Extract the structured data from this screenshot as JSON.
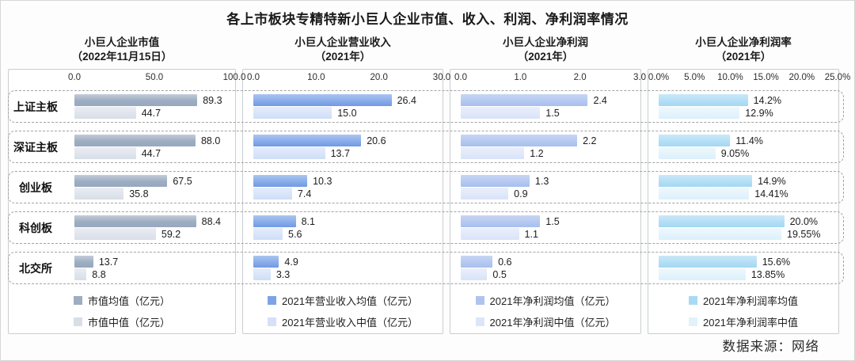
{
  "title": "各上市板块专精特新小巨人企业市值、收入、利润、净利润率情况",
  "footer": {
    "source": "数据来源：网络"
  },
  "categories": [
    "上证主板",
    "深证主板",
    "创业板",
    "科创板",
    "北交所"
  ],
  "chart_data": [
    {
      "type": "bar",
      "orientation": "horizontal",
      "title": "小巨人企业市值",
      "subtitle": "（2022年11月15日）",
      "categories": [
        "上证主板",
        "深证主板",
        "创业板",
        "科创板",
        "北交所"
      ],
      "xlim": [
        0,
        100
      ],
      "axis_ticks": [
        "0.0",
        "50.0",
        "100.0"
      ],
      "grid": false,
      "legend_position": "bottom",
      "series": [
        {
          "name": "市值均值（亿元）",
          "color": "#9dadc2",
          "values": [
            89.3,
            88.0,
            67.5,
            88.4,
            13.7
          ],
          "labels": [
            "89.3",
            "88.0",
            "67.5",
            "88.4",
            "13.7"
          ]
        },
        {
          "name": "市值中值（亿元）",
          "color": "#d9dfe8",
          "values": [
            44.7,
            44.7,
            35.8,
            59.2,
            8.8
          ],
          "labels": [
            "44.7",
            "44.7",
            "35.8",
            "59.2",
            "8.8"
          ]
        }
      ]
    },
    {
      "type": "bar",
      "orientation": "horizontal",
      "title": "小巨人企业营业收入",
      "subtitle": "（2021年）",
      "categories": [
        "上证主板",
        "深证主板",
        "创业板",
        "科创板",
        "北交所"
      ],
      "xlim": [
        0,
        30
      ],
      "axis_ticks": [
        "0.0",
        "10.0",
        "20.0",
        "30.0"
      ],
      "grid": false,
      "legend_position": "bottom",
      "series": [
        {
          "name": "2021年营业收入均值（亿元）",
          "color": "#7ca3e8",
          "values": [
            26.4,
            20.6,
            10.3,
            8.1,
            4.9
          ],
          "labels": [
            "26.4",
            "20.6",
            "10.3",
            "8.1",
            "4.9"
          ]
        },
        {
          "name": "2021年营业收入中值（亿元）",
          "color": "#d5e1f8",
          "values": [
            15.0,
            13.7,
            7.4,
            5.6,
            3.3
          ],
          "labels": [
            "15.0",
            "13.7",
            "7.4",
            "5.6",
            "3.3"
          ]
        }
      ]
    },
    {
      "type": "bar",
      "orientation": "horizontal",
      "title": "小巨人企业净利润",
      "subtitle": "（2021年）",
      "categories": [
        "上证主板",
        "深证主板",
        "创业板",
        "科创板",
        "北交所"
      ],
      "xlim": [
        0,
        3
      ],
      "axis_ticks": [
        "0.0",
        "1.0",
        "2.0",
        "3.0"
      ],
      "grid": false,
      "legend_position": "bottom",
      "series": [
        {
          "name": "2021年净利润均值（亿元）",
          "color": "#aec4ef",
          "values": [
            2.4,
            2.2,
            1.3,
            1.5,
            0.6
          ],
          "labels": [
            "2.4",
            "2.2",
            "1.3",
            "1.5",
            "0.6"
          ]
        },
        {
          "name": "2021年净利润中值（亿元）",
          "color": "#dde6f9",
          "values": [
            1.5,
            1.2,
            0.9,
            1.1,
            0.5
          ],
          "labels": [
            "1.5",
            "1.2",
            "0.9",
            "1.1",
            "0.5"
          ]
        }
      ]
    },
    {
      "type": "bar",
      "orientation": "horizontal",
      "title": "小巨人企业净利润率",
      "subtitle": "（2021年）",
      "categories": [
        "上证主板",
        "深证主板",
        "创业板",
        "科创板",
        "北交所"
      ],
      "xlim": [
        0,
        25
      ],
      "axis_ticks": [
        "0.0%",
        "5.0%",
        "10.0%",
        "15.0%",
        "20.0%",
        "25.0%"
      ],
      "grid": false,
      "legend_position": "bottom",
      "series": [
        {
          "name": "2021年净利润率均值",
          "color": "#a9daf4",
          "values": [
            14.2,
            11.4,
            14.9,
            20.0,
            15.6
          ],
          "labels": [
            "14.2%",
            "11.4%",
            "14.9%",
            "20.0%",
            "15.6%"
          ]
        },
        {
          "name": "2021年净利润率中值",
          "color": "#e1f2fb",
          "values": [
            12.9,
            9.05,
            14.41,
            19.55,
            13.85
          ],
          "labels": [
            "12.9%",
            "9.05%",
            "14.41%",
            "19.55%",
            "13.85%"
          ]
        }
      ]
    }
  ]
}
